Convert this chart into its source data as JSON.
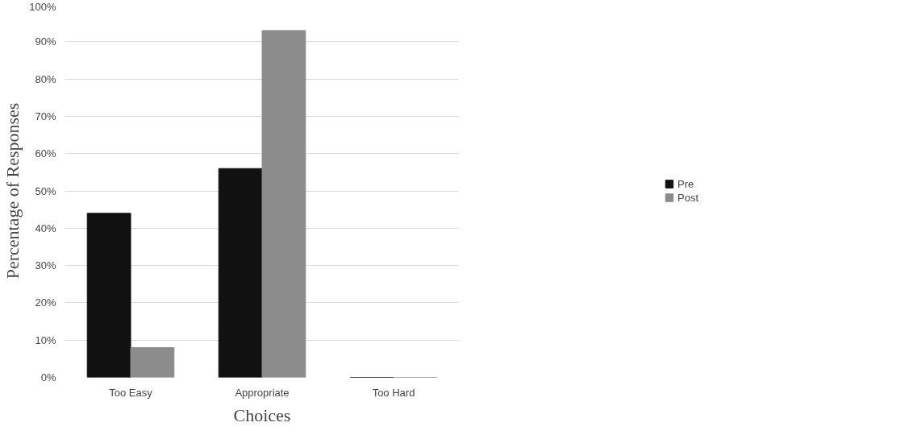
{
  "chart_data": {
    "type": "bar",
    "xlabel": "Choices",
    "ylabel": "Percentage of Responses",
    "categories": [
      "Too Easy",
      "Appropriate",
      "Too Hard"
    ],
    "series": [
      {
        "name": "Pre",
        "color": "#111111",
        "values": [
          44,
          56,
          0
        ]
      },
      {
        "name": "Post",
        "color": "#8c8c8c",
        "values": [
          8,
          93,
          0
        ]
      }
    ],
    "ylim": [
      0,
      100
    ],
    "yticks": [
      {
        "value": 0,
        "label": "0%"
      },
      {
        "value": 10,
        "label": "10%"
      },
      {
        "value": 20,
        "label": "20%"
      },
      {
        "value": 30,
        "label": "30%"
      },
      {
        "value": 40,
        "label": "40%"
      },
      {
        "value": 50,
        "label": "50%"
      },
      {
        "value": 60,
        "label": "60%"
      },
      {
        "value": 70,
        "label": "70%"
      },
      {
        "value": 80,
        "label": "80%"
      },
      {
        "value": 90,
        "label": "90%"
      },
      {
        "value": 100,
        "label": "100%"
      }
    ],
    "grid": "y",
    "legend": "right"
  }
}
